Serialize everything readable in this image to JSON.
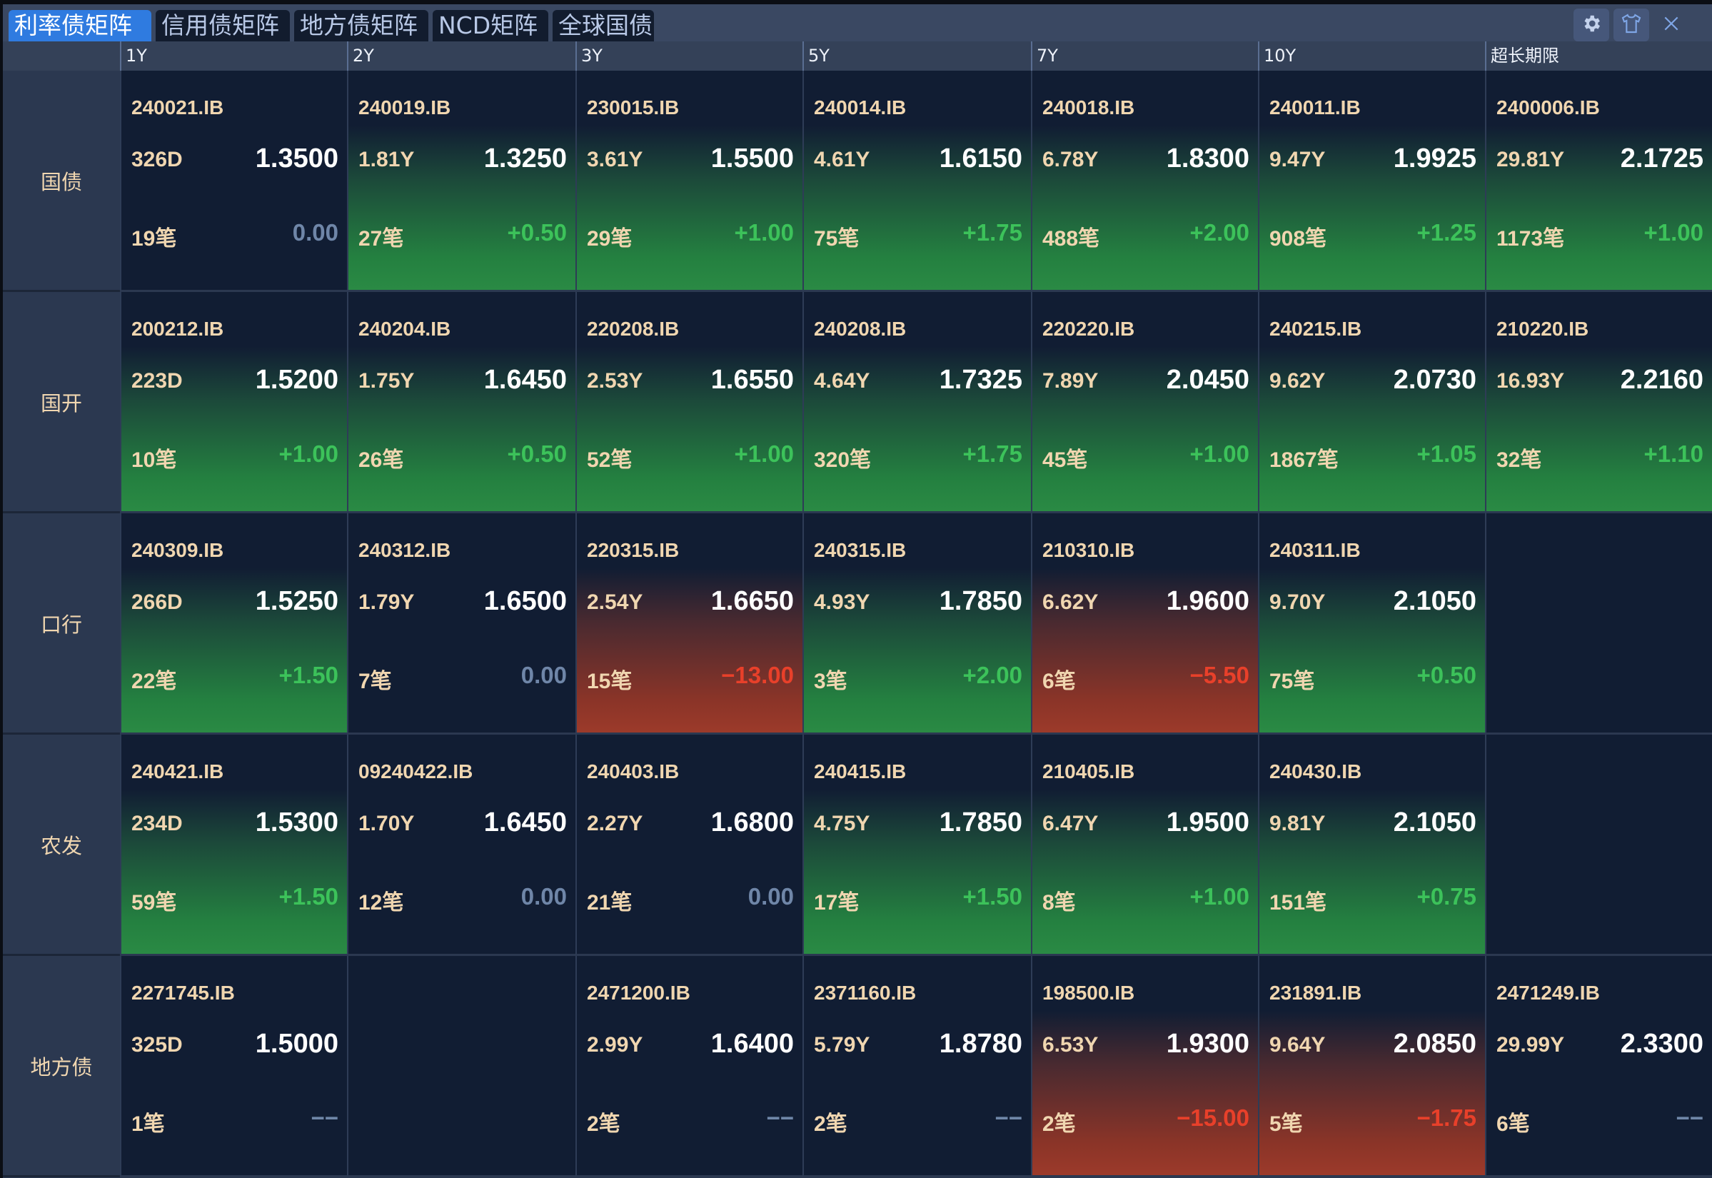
{
  "tabs": [
    "利率债矩阵",
    "信用债矩阵",
    "地方债矩阵",
    "NCD矩阵",
    "全球国债"
  ],
  "active_tab": 0,
  "icons": [
    "gear-icon",
    "shirt-icon",
    "close-icon"
  ],
  "colors": {
    "accent": "#2f7be0",
    "up": "#3cc25a",
    "down": "#e8402a",
    "flat": "#6f86a8",
    "code": "#f0d6b0"
  },
  "columns": [
    "1Y",
    "2Y",
    "3Y",
    "5Y",
    "7Y",
    "10Y",
    "超长期限"
  ],
  "rows": [
    {
      "label": "国债",
      "cells": [
        {
          "code": "240021.IB",
          "term": "326D",
          "rate": "1.3500",
          "count": "19笔",
          "change": "0.00",
          "tone": "dark"
        },
        {
          "code": "240019.IB",
          "term": "1.81Y",
          "rate": "1.3250",
          "count": "27笔",
          "change": "+0.50",
          "tone": "green"
        },
        {
          "code": "230015.IB",
          "term": "3.61Y",
          "rate": "1.5500",
          "count": "29笔",
          "change": "+1.00",
          "tone": "green"
        },
        {
          "code": "240014.IB",
          "term": "4.61Y",
          "rate": "1.6150",
          "count": "75笔",
          "change": "+1.75",
          "tone": "green"
        },
        {
          "code": "240018.IB",
          "term": "6.78Y",
          "rate": "1.8300",
          "count": "488笔",
          "change": "+2.00",
          "tone": "green"
        },
        {
          "code": "240011.IB",
          "term": "9.47Y",
          "rate": "1.9925",
          "count": "908笔",
          "change": "+1.25",
          "tone": "green"
        },
        {
          "code": "2400006.IB",
          "term": "29.81Y",
          "rate": "2.1725",
          "count": "1173笔",
          "change": "+1.00",
          "tone": "green"
        }
      ]
    },
    {
      "label": "国开",
      "cells": [
        {
          "code": "200212.IB",
          "term": "223D",
          "rate": "1.5200",
          "count": "10笔",
          "change": "+1.00",
          "tone": "green"
        },
        {
          "code": "240204.IB",
          "term": "1.75Y",
          "rate": "1.6450",
          "count": "26笔",
          "change": "+0.50",
          "tone": "green"
        },
        {
          "code": "220208.IB",
          "term": "2.53Y",
          "rate": "1.6550",
          "count": "52笔",
          "change": "+1.00",
          "tone": "green"
        },
        {
          "code": "240208.IB",
          "term": "4.64Y",
          "rate": "1.7325",
          "count": "320笔",
          "change": "+1.75",
          "tone": "green"
        },
        {
          "code": "220220.IB",
          "term": "7.89Y",
          "rate": "2.0450",
          "count": "45笔",
          "change": "+1.00",
          "tone": "green"
        },
        {
          "code": "240215.IB",
          "term": "9.62Y",
          "rate": "2.0730",
          "count": "1867笔",
          "change": "+1.05",
          "tone": "green"
        },
        {
          "code": "210220.IB",
          "term": "16.93Y",
          "rate": "2.2160",
          "count": "32笔",
          "change": "+1.10",
          "tone": "green"
        }
      ]
    },
    {
      "label": "口行",
      "cells": [
        {
          "code": "240309.IB",
          "term": "266D",
          "rate": "1.5250",
          "count": "22笔",
          "change": "+1.50",
          "tone": "green"
        },
        {
          "code": "240312.IB",
          "term": "1.79Y",
          "rate": "1.6500",
          "count": "7笔",
          "change": "0.00",
          "tone": "dark"
        },
        {
          "code": "220315.IB",
          "term": "2.54Y",
          "rate": "1.6650",
          "count": "15笔",
          "change": "−13.00",
          "tone": "red"
        },
        {
          "code": "240315.IB",
          "term": "4.93Y",
          "rate": "1.7850",
          "count": "3笔",
          "change": "+2.00",
          "tone": "green"
        },
        {
          "code": "210310.IB",
          "term": "6.62Y",
          "rate": "1.9600",
          "count": "6笔",
          "change": "−5.50",
          "tone": "red"
        },
        {
          "code": "240311.IB",
          "term": "9.70Y",
          "rate": "2.1050",
          "count": "75笔",
          "change": "+0.50",
          "tone": "green"
        },
        null
      ]
    },
    {
      "label": "农发",
      "cells": [
        {
          "code": "240421.IB",
          "term": "234D",
          "rate": "1.5300",
          "count": "59笔",
          "change": "+1.50",
          "tone": "green"
        },
        {
          "code": "09240422.IB",
          "term": "1.70Y",
          "rate": "1.6450",
          "count": "12笔",
          "change": "0.00",
          "tone": "dark"
        },
        {
          "code": "240403.IB",
          "term": "2.27Y",
          "rate": "1.6800",
          "count": "21笔",
          "change": "0.00",
          "tone": "dark"
        },
        {
          "code": "240415.IB",
          "term": "4.75Y",
          "rate": "1.7850",
          "count": "17笔",
          "change": "+1.50",
          "tone": "green"
        },
        {
          "code": "210405.IB",
          "term": "6.47Y",
          "rate": "1.9500",
          "count": "8笔",
          "change": "+1.00",
          "tone": "green"
        },
        {
          "code": "240430.IB",
          "term": "9.81Y",
          "rate": "2.1050",
          "count": "151笔",
          "change": "+0.75",
          "tone": "green"
        },
        null
      ]
    },
    {
      "label": "地方债",
      "cells": [
        {
          "code": "2271745.IB",
          "term": "325D",
          "rate": "1.5000",
          "count": "1笔",
          "change": "−−",
          "tone": "dark"
        },
        null,
        {
          "code": "2471200.IB",
          "term": "2.99Y",
          "rate": "1.6400",
          "count": "2笔",
          "change": "−−",
          "tone": "dark"
        },
        {
          "code": "2371160.IB",
          "term": "5.79Y",
          "rate": "1.8780",
          "count": "2笔",
          "change": "−−",
          "tone": "dark"
        },
        {
          "code": "198500.IB",
          "term": "6.53Y",
          "rate": "1.9300",
          "count": "2笔",
          "change": "−15.00",
          "tone": "red"
        },
        {
          "code": "231891.IB",
          "term": "9.64Y",
          "rate": "2.0850",
          "count": "5笔",
          "change": "−1.75",
          "tone": "red"
        },
        {
          "code": "2471249.IB",
          "term": "29.99Y",
          "rate": "2.3300",
          "count": "6笔",
          "change": "−−",
          "tone": "dark"
        }
      ]
    }
  ]
}
